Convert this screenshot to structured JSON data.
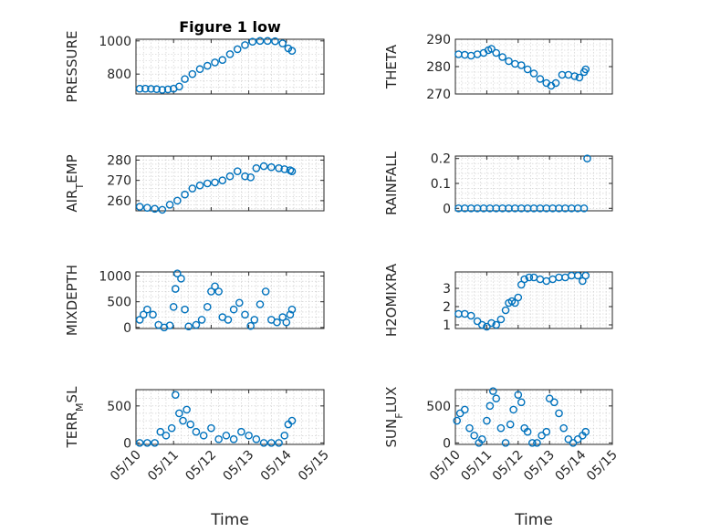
{
  "figure": {
    "marker_color": "#0072BD"
  },
  "chart_data": [
    {
      "type": "scatter",
      "id": "p1",
      "title": "Figure 1 low",
      "ylabel": "PRESSURE",
      "ylabel_sub": "",
      "ylabel_suffix": "",
      "xlim": [
        0,
        5
      ],
      "ylim": [
        680,
        1010
      ],
      "yticks": [
        800,
        1000
      ],
      "xtick_labels": [
        "05/10",
        "05/11",
        "05/12",
        "05/13",
        "05/14",
        "05/15"
      ],
      "xlabel": "",
      "show_xticklabels": false,
      "x": [
        0.1,
        0.25,
        0.4,
        0.55,
        0.7,
        0.85,
        1.0,
        1.15,
        1.3,
        1.5,
        1.7,
        1.9,
        2.1,
        2.3,
        2.5,
        2.7,
        2.9,
        3.1,
        3.3,
        3.5,
        3.7,
        3.9,
        4.05,
        4.15
      ],
      "y": [
        712,
        712,
        711,
        709,
        705,
        708,
        712,
        725,
        770,
        800,
        830,
        850,
        870,
        885,
        920,
        950,
        975,
        995,
        1000,
        1000,
        998,
        985,
        955,
        940
      ]
    },
    {
      "type": "scatter",
      "id": "p2",
      "title": "",
      "ylabel": "THETA",
      "ylabel_sub": "",
      "ylabel_suffix": "",
      "xlim": [
        0,
        5
      ],
      "ylim": [
        270,
        290
      ],
      "yticks": [
        270,
        280,
        290
      ],
      "xtick_labels": [
        "05/10",
        "05/11",
        "05/12",
        "05/13",
        "05/14",
        "05/15"
      ],
      "xlabel": "",
      "show_xticklabels": false,
      "x": [
        0.1,
        0.3,
        0.5,
        0.7,
        0.9,
        1.05,
        1.15,
        1.3,
        1.5,
        1.7,
        1.9,
        2.1,
        2.3,
        2.5,
        2.7,
        2.9,
        3.05,
        3.2,
        3.4,
        3.6,
        3.8,
        3.95,
        4.1,
        4.15
      ],
      "y": [
        284.5,
        284.3,
        284.0,
        284.5,
        285.0,
        286.0,
        286.5,
        285.0,
        283.5,
        282.0,
        281.0,
        280.5,
        279.0,
        277.5,
        275.5,
        274.0,
        273.0,
        274.0,
        277.0,
        277.0,
        276.5,
        276.0,
        278.0,
        279.0
      ]
    },
    {
      "type": "scatter",
      "id": "p3",
      "title": "",
      "ylabel": "AIR",
      "ylabel_sub": "T",
      "ylabel_suffix": "EMP",
      "xlim": [
        0,
        5
      ],
      "ylim": [
        255,
        282
      ],
      "yticks": [
        260,
        270,
        280
      ],
      "xtick_labels": [
        "05/10",
        "05/11",
        "05/12",
        "05/13",
        "05/14",
        "05/15"
      ],
      "xlabel": "",
      "show_xticklabels": false,
      "x": [
        0.1,
        0.3,
        0.5,
        0.7,
        0.9,
        1.1,
        1.3,
        1.5,
        1.7,
        1.9,
        2.1,
        2.3,
        2.5,
        2.7,
        2.9,
        3.05,
        3.2,
        3.4,
        3.6,
        3.8,
        3.95,
        4.1,
        4.15
      ],
      "y": [
        257.0,
        256.5,
        256.0,
        255.5,
        258.0,
        260.0,
        263.0,
        266.0,
        267.5,
        268.5,
        269.0,
        270.0,
        272.0,
        274.5,
        272.0,
        271.5,
        276.0,
        277.0,
        276.5,
        276.0,
        275.5,
        275.0,
        274.5
      ]
    },
    {
      "type": "scatter",
      "id": "p4",
      "title": "",
      "ylabel": "RAINFALL",
      "ylabel_sub": "",
      "ylabel_suffix": "",
      "xlim": [
        0,
        5
      ],
      "ylim": [
        -0.01,
        0.21
      ],
      "yticks": [
        0,
        0.1,
        0.2
      ],
      "xtick_labels": [
        "05/10",
        "05/11",
        "05/12",
        "05/13",
        "05/14",
        "05/15"
      ],
      "xlabel": "",
      "show_xticklabels": false,
      "x": [
        0.1,
        0.3,
        0.5,
        0.7,
        0.9,
        1.1,
        1.3,
        1.5,
        1.7,
        1.9,
        2.1,
        2.3,
        2.5,
        2.7,
        2.9,
        3.1,
        3.3,
        3.5,
        3.7,
        3.9,
        4.1,
        4.2
      ],
      "y": [
        0,
        0,
        0,
        0,
        0,
        0,
        0,
        0,
        0,
        0,
        0,
        0,
        0,
        0,
        0,
        0,
        0,
        0,
        0,
        0,
        0,
        0.2
      ]
    },
    {
      "type": "scatter",
      "id": "p5",
      "title": "",
      "ylabel": "MIXDEPTH",
      "ylabel_sub": "",
      "ylabel_suffix": "",
      "xlim": [
        0,
        5
      ],
      "ylim": [
        -20,
        1080
      ],
      "yticks": [
        0,
        500,
        1000
      ],
      "xtick_labels": [
        "05/10",
        "05/11",
        "05/12",
        "05/13",
        "05/14",
        "05/15"
      ],
      "xlabel": "",
      "show_xticklabels": false,
      "x": [
        0.1,
        0.2,
        0.3,
        0.45,
        0.6,
        0.75,
        0.9,
        1.0,
        1.05,
        1.1,
        1.2,
        1.3,
        1.4,
        1.6,
        1.75,
        1.9,
        2.0,
        2.1,
        2.2,
        2.3,
        2.45,
        2.6,
        2.75,
        2.9,
        3.05,
        3.15,
        3.3,
        3.45,
        3.6,
        3.75,
        3.9,
        4.0,
        4.1,
        4.15
      ],
      "y": [
        150,
        250,
        350,
        250,
        50,
        0,
        40,
        400,
        750,
        1050,
        950,
        350,
        20,
        50,
        150,
        400,
        700,
        800,
        700,
        200,
        150,
        350,
        480,
        250,
        30,
        150,
        450,
        700,
        150,
        100,
        200,
        100,
        250,
        350
      ]
    },
    {
      "type": "scatter",
      "id": "p6",
      "title": "",
      "ylabel": "H2OMIXRA",
      "ylabel_sub": "",
      "ylabel_suffix": "",
      "xlim": [
        0,
        5
      ],
      "ylim": [
        0.8,
        3.9
      ],
      "yticks": [
        1,
        2,
        3
      ],
      "xtick_labels": [
        "05/10",
        "05/11",
        "05/12",
        "05/13",
        "05/14",
        "05/15"
      ],
      "xlabel": "",
      "show_xticklabels": false,
      "x": [
        0.1,
        0.3,
        0.5,
        0.7,
        0.85,
        1.0,
        1.15,
        1.3,
        1.45,
        1.6,
        1.7,
        1.8,
        1.9,
        2.0,
        2.1,
        2.2,
        2.35,
        2.5,
        2.7,
        2.9,
        3.1,
        3.3,
        3.5,
        3.7,
        3.9,
        4.05,
        4.15
      ],
      "y": [
        1.6,
        1.6,
        1.5,
        1.2,
        1.0,
        0.9,
        1.1,
        1.0,
        1.3,
        1.8,
        2.2,
        2.3,
        2.2,
        2.5,
        3.2,
        3.5,
        3.6,
        3.6,
        3.5,
        3.4,
        3.5,
        3.6,
        3.6,
        3.7,
        3.7,
        3.4,
        3.7
      ]
    },
    {
      "type": "scatter",
      "id": "p7",
      "title": "",
      "ylabel": "TERR",
      "ylabel_sub": "M",
      "ylabel_suffix": "SL",
      "xlim": [
        0,
        5
      ],
      "ylim": [
        -20,
        720
      ],
      "yticks": [
        0,
        500
      ],
      "xtick_labels": [
        "05/10",
        "05/11",
        "05/12",
        "05/13",
        "05/14",
        "05/15"
      ],
      "xlabel": "Time",
      "show_xticklabels": true,
      "x": [
        0.1,
        0.3,
        0.5,
        0.65,
        0.8,
        0.95,
        1.05,
        1.15,
        1.25,
        1.35,
        1.45,
        1.6,
        1.8,
        2.0,
        2.2,
        2.4,
        2.6,
        2.8,
        3.0,
        3.2,
        3.4,
        3.6,
        3.8,
        3.95,
        4.05,
        4.15
      ],
      "y": [
        0,
        0,
        0,
        150,
        100,
        200,
        650,
        400,
        300,
        450,
        250,
        150,
        100,
        200,
        50,
        100,
        50,
        150,
        100,
        50,
        0,
        0,
        0,
        100,
        250,
        300
      ]
    },
    {
      "type": "scatter",
      "id": "p8",
      "title": "",
      "ylabel": "SUN",
      "ylabel_sub": "F",
      "ylabel_suffix": "LUX",
      "xlim": [
        0,
        5
      ],
      "ylim": [
        -20,
        720
      ],
      "yticks": [
        0,
        500
      ],
      "xtick_labels": [
        "05/10",
        "05/11",
        "05/12",
        "05/13",
        "05/14",
        "05/15"
      ],
      "xlabel": "Time",
      "show_xticklabels": true,
      "x": [
        0.05,
        0.15,
        0.3,
        0.45,
        0.6,
        0.75,
        0.85,
        1.0,
        1.1,
        1.2,
        1.3,
        1.45,
        1.6,
        1.75,
        1.85,
        2.0,
        2.1,
        2.2,
        2.3,
        2.45,
        2.6,
        2.75,
        2.9,
        3.0,
        3.15,
        3.3,
        3.45,
        3.6,
        3.75,
        3.9,
        4.05,
        4.15
      ],
      "y": [
        300,
        400,
        450,
        200,
        100,
        0,
        50,
        300,
        500,
        700,
        600,
        200,
        0,
        250,
        450,
        650,
        550,
        200,
        150,
        0,
        0,
        100,
        150,
        600,
        550,
        400,
        200,
        50,
        0,
        50,
        100,
        150
      ]
    }
  ]
}
